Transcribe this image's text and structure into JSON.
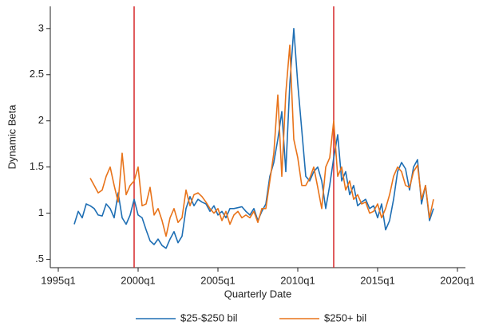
{
  "chart_data": {
    "type": "line",
    "x_label": "Quarterly Date",
    "y_label": "Dynamic Beta",
    "x": [
      "1996q1",
      "1996q2",
      "1996q3",
      "1996q4",
      "1997q1",
      "1997q2",
      "1997q3",
      "1997q4",
      "1998q1",
      "1998q2",
      "1998q3",
      "1998q4",
      "1999q1",
      "1999q2",
      "1999q3",
      "1999q4",
      "2000q1",
      "2000q2",
      "2000q3",
      "2000q4",
      "2001q1",
      "2001q2",
      "2001q3",
      "2001q4",
      "2002q1",
      "2002q2",
      "2002q3",
      "2002q4",
      "2003q1",
      "2003q2",
      "2003q3",
      "2003q4",
      "2004q1",
      "2004q2",
      "2004q3",
      "2004q4",
      "2005q1",
      "2005q2",
      "2005q3",
      "2005q4",
      "2006q1",
      "2006q2",
      "2006q3",
      "2006q4",
      "2007q1",
      "2007q2",
      "2007q3",
      "2007q4",
      "2008q1",
      "2008q2",
      "2008q3",
      "2008q4",
      "2009q1",
      "2009q2",
      "2009q3",
      "2009q4",
      "2010q1",
      "2010q2",
      "2010q3",
      "2010q4",
      "2011q1",
      "2011q2",
      "2011q3",
      "2011q4",
      "2012q1",
      "2012q2",
      "2012q3",
      "2012q4",
      "2013q1",
      "2013q2",
      "2013q3",
      "2013q4",
      "2014q1",
      "2014q2",
      "2014q3",
      "2014q4",
      "2015q1",
      "2015q2",
      "2015q3",
      "2015q4",
      "2016q1",
      "2016q2",
      "2016q3",
      "2016q4",
      "2017q1",
      "2017q2",
      "2017q3",
      "2017q4",
      "2018q1",
      "2018q2",
      "2018q3"
    ],
    "series": [
      {
        "name": "$25-$250 bil",
        "color": "#1f6fb4",
        "values": [
          0.88,
          1.02,
          0.95,
          1.1,
          1.08,
          1.05,
          0.98,
          0.97,
          1.1,
          1.05,
          0.95,
          1.22,
          0.95,
          0.88,
          0.98,
          1.15,
          0.98,
          0.95,
          0.82,
          0.7,
          0.66,
          0.72,
          0.65,
          0.62,
          0.72,
          0.8,
          0.68,
          0.75,
          1.05,
          1.18,
          1.08,
          1.15,
          1.12,
          1.1,
          1.02,
          1.08,
          0.98,
          1.02,
          0.95,
          1.05,
          1.05,
          1.06,
          1.07,
          1.02,
          0.98,
          1.05,
          0.92,
          1.02,
          1.1,
          1.4,
          1.55,
          1.8,
          2.1,
          1.45,
          2.4,
          3.0,
          2.4,
          1.9,
          1.4,
          1.35,
          1.45,
          1.5,
          1.35,
          1.05,
          1.3,
          1.6,
          1.85,
          1.35,
          1.45,
          1.2,
          1.3,
          1.08,
          1.12,
          1.15,
          1.05,
          1.08,
          0.95,
          1.1,
          0.82,
          0.92,
          1.15,
          1.45,
          1.55,
          1.48,
          1.25,
          1.5,
          1.58,
          1.1,
          1.3,
          0.92,
          1.05
        ]
      },
      {
        "name": "$250+ bil",
        "color": "#e8731a",
        "values": [
          null,
          null,
          null,
          null,
          1.38,
          1.3,
          1.22,
          1.25,
          1.4,
          1.5,
          1.3,
          1.12,
          1.65,
          1.2,
          1.3,
          1.35,
          1.5,
          1.08,
          1.1,
          1.28,
          0.98,
          1.05,
          0.92,
          0.75,
          0.95,
          1.05,
          0.9,
          0.95,
          1.25,
          1.08,
          1.2,
          1.22,
          1.18,
          1.12,
          1.05,
          1.0,
          1.05,
          0.92,
          1.02,
          0.88,
          0.98,
          1.02,
          0.95,
          0.98,
          0.95,
          1.02,
          0.9,
          1.05,
          1.05,
          1.35,
          1.65,
          2.28,
          1.4,
          2.3,
          2.82,
          1.8,
          1.6,
          1.3,
          1.3,
          1.38,
          1.5,
          1.28,
          1.05,
          1.5,
          1.6,
          2.0,
          1.4,
          1.5,
          1.25,
          1.35,
          1.15,
          1.2,
          1.1,
          1.12,
          1.0,
          1.02,
          1.1,
          0.95,
          1.05,
          1.2,
          1.4,
          1.5,
          1.45,
          1.3,
          1.28,
          1.45,
          1.52,
          1.15,
          1.3,
          0.95,
          1.15
        ]
      }
    ],
    "vlines": [
      "1999q4",
      "2012q2"
    ],
    "vline_color": "#d62728",
    "xlim": [
      "1994q3",
      "2020q3"
    ],
    "xticks": [
      "1995q1",
      "2000q1",
      "2005q1",
      "2010q1",
      "2015q1",
      "2020q1"
    ],
    "ylim": [
      0.41,
      3.24
    ],
    "yticks": [
      {
        "value": 0.5,
        "label": ".5"
      },
      1,
      1.5,
      2,
      2.5,
      3
    ],
    "grid": false,
    "legend": "bottom"
  }
}
